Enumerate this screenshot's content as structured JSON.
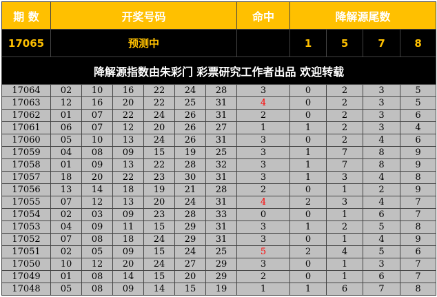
{
  "header": {
    "period": "期 数",
    "numbers": "开奖号码",
    "hits": "命中",
    "tails": "降解源尾数"
  },
  "prediction": {
    "period": "17065",
    "status": "预测中",
    "hits": "",
    "tails": [
      "1",
      "5",
      "7",
      "8"
    ]
  },
  "note": "降解源指数由朱彩门 彩票研究工作者出品 欢迎转载",
  "colors": {
    "header_bg": "#ffc000",
    "prediction_bg": "#000000",
    "row_bg": "#c0c0c0",
    "hit_highlight": "#ff0000"
  },
  "rows": [
    {
      "period": "17064",
      "nums": [
        "02",
        "10",
        "16",
        "22",
        "24",
        "28"
      ],
      "hits": "3",
      "hl": false,
      "tails": [
        "0",
        "2",
        "3",
        "5"
      ]
    },
    {
      "period": "17063",
      "nums": [
        "12",
        "16",
        "20",
        "22",
        "25",
        "31"
      ],
      "hits": "4",
      "hl": true,
      "tails": [
        "0",
        "2",
        "3",
        "5"
      ]
    },
    {
      "period": "17062",
      "nums": [
        "01",
        "07",
        "22",
        "24",
        "26",
        "31"
      ],
      "hits": "2",
      "hl": false,
      "tails": [
        "0",
        "2",
        "3",
        "6"
      ]
    },
    {
      "period": "17061",
      "nums": [
        "06",
        "07",
        "12",
        "20",
        "26",
        "27"
      ],
      "hits": "1",
      "hl": false,
      "tails": [
        "1",
        "2",
        "3",
        "4"
      ]
    },
    {
      "period": "17060",
      "nums": [
        "05",
        "10",
        "13",
        "24",
        "26",
        "31"
      ],
      "hits": "3",
      "hl": false,
      "tails": [
        "0",
        "2",
        "4",
        "6"
      ]
    },
    {
      "period": "17059",
      "nums": [
        "04",
        "08",
        "09",
        "15",
        "19",
        "25"
      ],
      "hits": "3",
      "hl": false,
      "tails": [
        "1",
        "7",
        "8",
        "9"
      ]
    },
    {
      "period": "17058",
      "nums": [
        "01",
        "09",
        "13",
        "22",
        "28",
        "32"
      ],
      "hits": "3",
      "hl": false,
      "tails": [
        "1",
        "7",
        "8",
        "9"
      ]
    },
    {
      "period": "17057",
      "nums": [
        "18",
        "20",
        "22",
        "23",
        "30",
        "31"
      ],
      "hits": "3",
      "hl": false,
      "tails": [
        "1",
        "3",
        "4",
        "8"
      ]
    },
    {
      "period": "17056",
      "nums": [
        "13",
        "14",
        "18",
        "19",
        "21",
        "28"
      ],
      "hits": "2",
      "hl": false,
      "tails": [
        "0",
        "1",
        "2",
        "9"
      ]
    },
    {
      "period": "17055",
      "nums": [
        "07",
        "12",
        "13",
        "20",
        "24",
        "31"
      ],
      "hits": "4",
      "hl": true,
      "tails": [
        "2",
        "3",
        "4",
        "7"
      ]
    },
    {
      "period": "17054",
      "nums": [
        "02",
        "03",
        "09",
        "23",
        "28",
        "33"
      ],
      "hits": "0",
      "hl": false,
      "tails": [
        "0",
        "1",
        "6",
        "7"
      ]
    },
    {
      "period": "17053",
      "nums": [
        "04",
        "09",
        "11",
        "15",
        "29",
        "31"
      ],
      "hits": "3",
      "hl": false,
      "tails": [
        "1",
        "2",
        "5",
        "8"
      ]
    },
    {
      "period": "17052",
      "nums": [
        "07",
        "08",
        "18",
        "24",
        "29",
        "31"
      ],
      "hits": "3",
      "hl": false,
      "tails": [
        "0",
        "1",
        "4",
        "9"
      ]
    },
    {
      "period": "17051",
      "nums": [
        "02",
        "05",
        "09",
        "15",
        "24",
        "25"
      ],
      "hits": "5",
      "hl": true,
      "tails": [
        "2",
        "4",
        "5",
        "6"
      ]
    },
    {
      "period": "17050",
      "nums": [
        "10",
        "12",
        "20",
        "24",
        "27",
        "29"
      ],
      "hits": "3",
      "hl": false,
      "tails": [
        "0",
        "1",
        "3",
        "7"
      ]
    },
    {
      "period": "17049",
      "nums": [
        "01",
        "08",
        "14",
        "15",
        "20",
        "29"
      ],
      "hits": "2",
      "hl": false,
      "tails": [
        "0",
        "1",
        "6",
        "7"
      ]
    },
    {
      "period": "17048",
      "nums": [
        "05",
        "08",
        "09",
        "14",
        "15",
        "19"
      ],
      "hits": "1",
      "hl": false,
      "tails": [
        "1",
        "6",
        "7",
        "8"
      ]
    }
  ]
}
